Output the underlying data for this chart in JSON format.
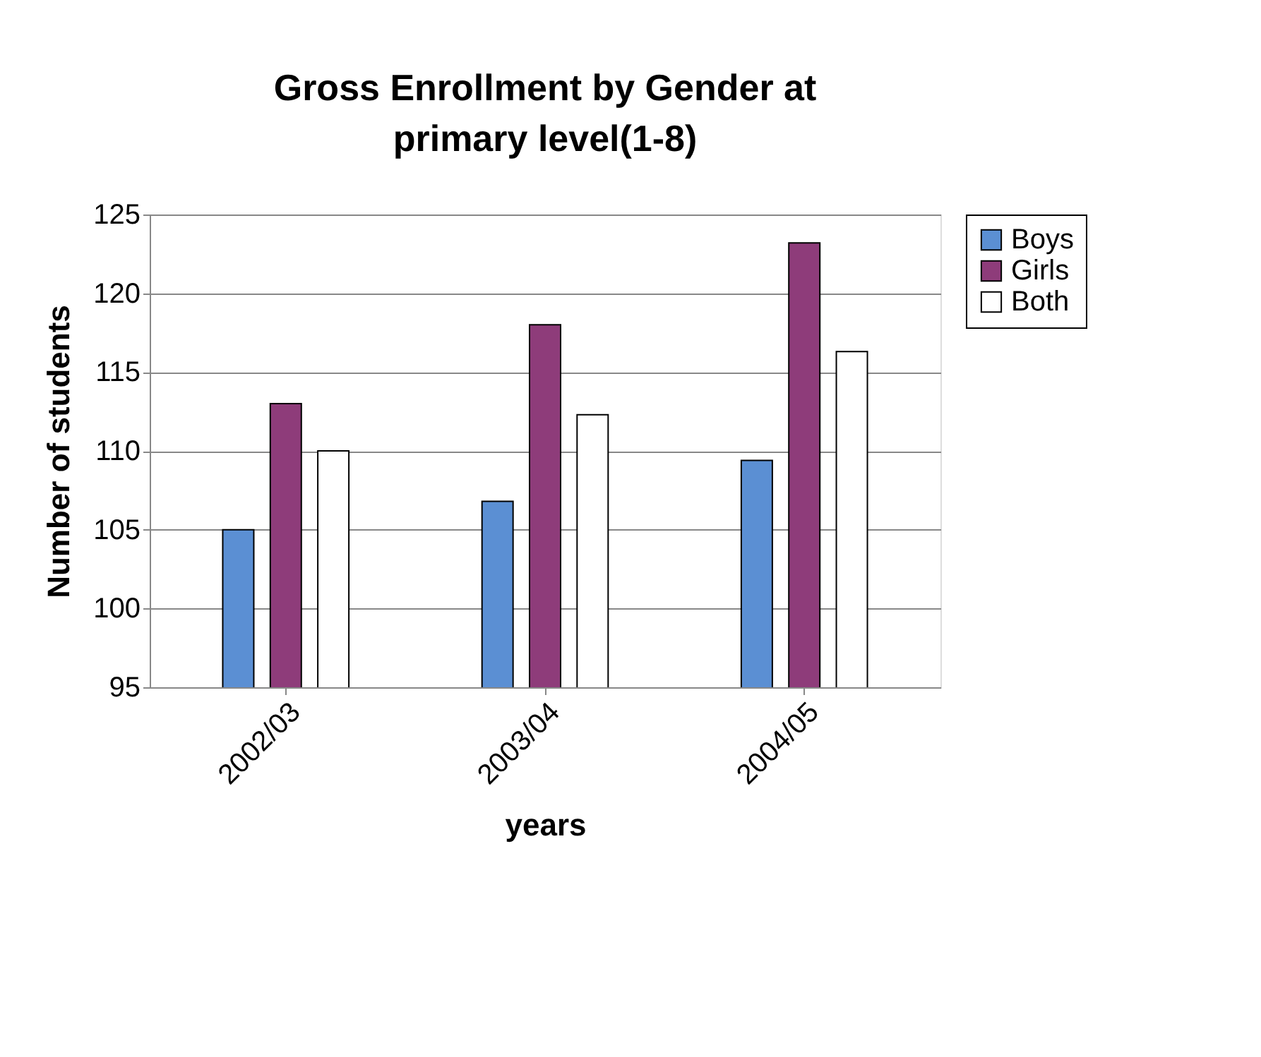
{
  "chart_data": {
    "type": "bar",
    "title": "Gross Enrollment by Gender at primary level(1-8)",
    "xlabel": "years",
    "ylabel": "Number of students",
    "categories": [
      "2002/03",
      "2003/04",
      "2004/05"
    ],
    "series": [
      {
        "name": "Boys",
        "color": "#5b8fd3",
        "values": [
          105,
          106.8,
          109.4
        ]
      },
      {
        "name": "Girls",
        "color": "#8e3c7a",
        "values": [
          113,
          118,
          123.2
        ]
      },
      {
        "name": "Both",
        "color": "#ffffff",
        "values": [
          110,
          112.3,
          116.3
        ]
      }
    ],
    "ylim": [
      95,
      125
    ],
    "yticks": [
      95,
      100,
      105,
      110,
      115,
      120,
      125
    ],
    "grid": "y",
    "legend": "right"
  }
}
